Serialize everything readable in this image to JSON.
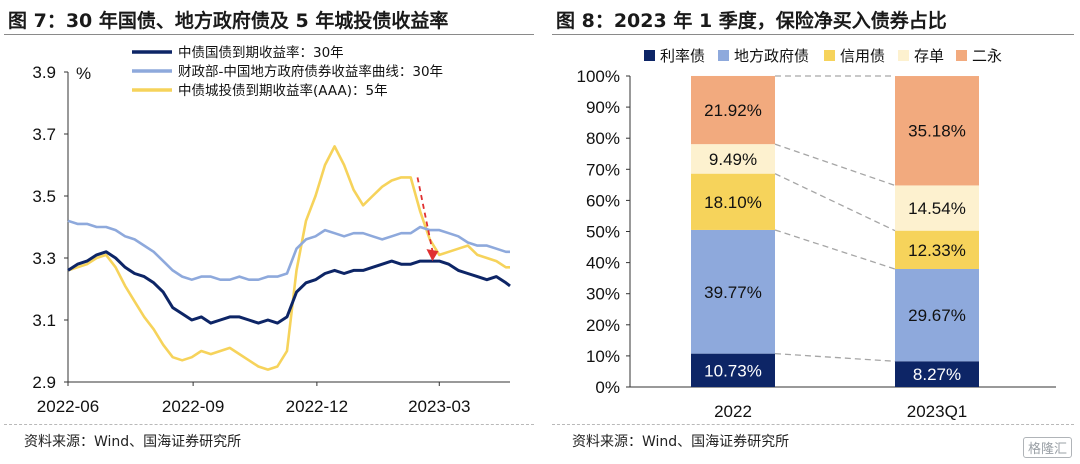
{
  "left": {
    "title": "图 7：30 年国债、地方政府债及 5 年城投债收益率",
    "source": "资料来源：Wind、国海证券研究所",
    "unit": "%"
  },
  "right": {
    "title": "图 8：2023 年 1 季度，保险净买入债券占比",
    "source": "资料来源：Wind、国海证券研究所"
  },
  "watermark": "格隆汇",
  "chart_data": [
    {
      "type": "line",
      "unit": "%",
      "ylim": [
        2.9,
        3.9
      ],
      "yticks": [
        "3.9",
        "3.7",
        "3.5",
        "3.3",
        "3.1",
        "2.9"
      ],
      "ytick_values": [
        3.9,
        3.7,
        3.5,
        3.3,
        3.1,
        2.9
      ],
      "xticks": [
        "2022-06",
        "2022-09",
        "2022-12",
        "2023-03"
      ],
      "xtick_dates": [
        "2022-06-01",
        "2022-09-01",
        "2022-12-01",
        "2023-03-01"
      ],
      "xlim": [
        "2022-06-01",
        "2023-04-22"
      ],
      "legend_position": "top",
      "series": [
        {
          "name": "中债国债到期收益率：30年",
          "color": "#0d2566",
          "points": [
            [
              "2022-06-01",
              3.26
            ],
            [
              "2022-06-08",
              3.28
            ],
            [
              "2022-06-15",
              3.29
            ],
            [
              "2022-06-22",
              3.31
            ],
            [
              "2022-06-29",
              3.32
            ],
            [
              "2022-07-06",
              3.3
            ],
            [
              "2022-07-13",
              3.27
            ],
            [
              "2022-07-20",
              3.25
            ],
            [
              "2022-07-27",
              3.24
            ],
            [
              "2022-08-03",
              3.22
            ],
            [
              "2022-08-10",
              3.19
            ],
            [
              "2022-08-17",
              3.14
            ],
            [
              "2022-08-24",
              3.12
            ],
            [
              "2022-08-31",
              3.1
            ],
            [
              "2022-09-07",
              3.11
            ],
            [
              "2022-09-14",
              3.09
            ],
            [
              "2022-09-21",
              3.1
            ],
            [
              "2022-09-28",
              3.11
            ],
            [
              "2022-10-05",
              3.11
            ],
            [
              "2022-10-12",
              3.1
            ],
            [
              "2022-10-19",
              3.09
            ],
            [
              "2022-10-26",
              3.1
            ],
            [
              "2022-11-02",
              3.09
            ],
            [
              "2022-11-09",
              3.11
            ],
            [
              "2022-11-16",
              3.19
            ],
            [
              "2022-11-23",
              3.22
            ],
            [
              "2022-11-30",
              3.23
            ],
            [
              "2022-12-07",
              3.25
            ],
            [
              "2022-12-14",
              3.26
            ],
            [
              "2022-12-21",
              3.25
            ],
            [
              "2022-12-28",
              3.26
            ],
            [
              "2023-01-04",
              3.26
            ],
            [
              "2023-01-11",
              3.27
            ],
            [
              "2023-01-18",
              3.28
            ],
            [
              "2023-01-25",
              3.29
            ],
            [
              "2023-02-01",
              3.28
            ],
            [
              "2023-02-08",
              3.28
            ],
            [
              "2023-02-15",
              3.29
            ],
            [
              "2023-02-22",
              3.29
            ],
            [
              "2023-03-01",
              3.29
            ],
            [
              "2023-03-08",
              3.28
            ],
            [
              "2023-03-15",
              3.26
            ],
            [
              "2023-03-22",
              3.25
            ],
            [
              "2023-03-29",
              3.24
            ],
            [
              "2023-04-05",
              3.23
            ],
            [
              "2023-04-12",
              3.24
            ],
            [
              "2023-04-19",
              3.22
            ],
            [
              "2023-04-22",
              3.21
            ]
          ]
        },
        {
          "name": "财政部-中国地方政府债券收益率曲线：30年",
          "color": "#8ea9dc",
          "points": [
            [
              "2022-06-01",
              3.42
            ],
            [
              "2022-06-08",
              3.41
            ],
            [
              "2022-06-15",
              3.41
            ],
            [
              "2022-06-22",
              3.4
            ],
            [
              "2022-06-29",
              3.4
            ],
            [
              "2022-07-06",
              3.39
            ],
            [
              "2022-07-13",
              3.37
            ],
            [
              "2022-07-20",
              3.36
            ],
            [
              "2022-07-27",
              3.34
            ],
            [
              "2022-08-03",
              3.32
            ],
            [
              "2022-08-10",
              3.29
            ],
            [
              "2022-08-17",
              3.26
            ],
            [
              "2022-08-24",
              3.24
            ],
            [
              "2022-08-31",
              3.23
            ],
            [
              "2022-09-07",
              3.24
            ],
            [
              "2022-09-14",
              3.24
            ],
            [
              "2022-09-21",
              3.23
            ],
            [
              "2022-09-28",
              3.23
            ],
            [
              "2022-10-05",
              3.24
            ],
            [
              "2022-10-12",
              3.23
            ],
            [
              "2022-10-19",
              3.23
            ],
            [
              "2022-10-26",
              3.24
            ],
            [
              "2022-11-02",
              3.24
            ],
            [
              "2022-11-09",
              3.25
            ],
            [
              "2022-11-16",
              3.33
            ],
            [
              "2022-11-23",
              3.36
            ],
            [
              "2022-11-30",
              3.37
            ],
            [
              "2022-12-07",
              3.39
            ],
            [
              "2022-12-14",
              3.38
            ],
            [
              "2022-12-21",
              3.37
            ],
            [
              "2022-12-28",
              3.38
            ],
            [
              "2023-01-04",
              3.38
            ],
            [
              "2023-01-11",
              3.37
            ],
            [
              "2023-01-18",
              3.36
            ],
            [
              "2023-01-25",
              3.37
            ],
            [
              "2023-02-01",
              3.38
            ],
            [
              "2023-02-08",
              3.38
            ],
            [
              "2023-02-15",
              3.4
            ],
            [
              "2023-02-22",
              3.39
            ],
            [
              "2023-03-01",
              3.39
            ],
            [
              "2023-03-08",
              3.38
            ],
            [
              "2023-03-15",
              3.37
            ],
            [
              "2023-03-22",
              3.35
            ],
            [
              "2023-03-29",
              3.34
            ],
            [
              "2023-04-05",
              3.34
            ],
            [
              "2023-04-12",
              3.33
            ],
            [
              "2023-04-19",
              3.32
            ],
            [
              "2023-04-22",
              3.32
            ]
          ]
        },
        {
          "name": "中债城投债到期收益率(AAA)：5年",
          "color": "#f6d35b",
          "points": [
            [
              "2022-06-01",
              3.26
            ],
            [
              "2022-06-08",
              3.27
            ],
            [
              "2022-06-15",
              3.28
            ],
            [
              "2022-06-22",
              3.3
            ],
            [
              "2022-06-29",
              3.31
            ],
            [
              "2022-07-06",
              3.27
            ],
            [
              "2022-07-13",
              3.21
            ],
            [
              "2022-07-20",
              3.16
            ],
            [
              "2022-07-27",
              3.11
            ],
            [
              "2022-08-03",
              3.07
            ],
            [
              "2022-08-10",
              3.02
            ],
            [
              "2022-08-17",
              2.98
            ],
            [
              "2022-08-24",
              2.97
            ],
            [
              "2022-08-31",
              2.98
            ],
            [
              "2022-09-07",
              3.0
            ],
            [
              "2022-09-14",
              2.99
            ],
            [
              "2022-09-21",
              3.0
            ],
            [
              "2022-09-28",
              3.01
            ],
            [
              "2022-10-05",
              2.99
            ],
            [
              "2022-10-12",
              2.97
            ],
            [
              "2022-10-19",
              2.95
            ],
            [
              "2022-10-26",
              2.94
            ],
            [
              "2022-11-02",
              2.95
            ],
            [
              "2022-11-09",
              3.0
            ],
            [
              "2022-11-16",
              3.26
            ],
            [
              "2022-11-23",
              3.42
            ],
            [
              "2022-11-30",
              3.5
            ],
            [
              "2022-12-07",
              3.6
            ],
            [
              "2022-12-14",
              3.66
            ],
            [
              "2022-12-21",
              3.6
            ],
            [
              "2022-12-28",
              3.52
            ],
            [
              "2023-01-04",
              3.47
            ],
            [
              "2023-01-11",
              3.5
            ],
            [
              "2023-01-18",
              3.53
            ],
            [
              "2023-01-25",
              3.55
            ],
            [
              "2023-02-01",
              3.56
            ],
            [
              "2023-02-08",
              3.56
            ],
            [
              "2023-02-15",
              3.45
            ],
            [
              "2023-02-22",
              3.36
            ],
            [
              "2023-03-01",
              3.31
            ],
            [
              "2023-03-08",
              3.32
            ],
            [
              "2023-03-15",
              3.33
            ],
            [
              "2023-03-22",
              3.34
            ],
            [
              "2023-03-29",
              3.31
            ],
            [
              "2023-04-05",
              3.3
            ],
            [
              "2023-04-12",
              3.29
            ],
            [
              "2023-04-19",
              3.27
            ],
            [
              "2023-04-22",
              3.27
            ]
          ]
        }
      ],
      "annotation": {
        "type": "arrow",
        "color": "#e03030",
        "from": [
          "2023-02-13",
          3.56
        ],
        "to": [
          "2023-02-24",
          3.29
        ]
      }
    },
    {
      "type": "stacked_bar",
      "categories": [
        "2022",
        "2023Q1"
      ],
      "ylim": [
        0,
        100
      ],
      "yticks": [
        "0%",
        "10%",
        "20%",
        "30%",
        "40%",
        "50%",
        "60%",
        "70%",
        "80%",
        "90%",
        "100%"
      ],
      "ytick_values": [
        0,
        10,
        20,
        30,
        40,
        50,
        60,
        70,
        80,
        90,
        100
      ],
      "legend_position": "top",
      "connectors": "dashed",
      "series": [
        {
          "name": "利率债",
          "color": "#0d2566",
          "label_color": "#ffffff",
          "values": [
            10.73,
            8.27
          ],
          "labels": [
            "10.73%",
            "8.27%"
          ]
        },
        {
          "name": "地方政府债",
          "color": "#8ea9dc",
          "label_color": "#111111",
          "values": [
            39.77,
            29.67
          ],
          "labels": [
            "39.77%",
            "29.67%"
          ]
        },
        {
          "name": "信用债",
          "color": "#f6d35b",
          "label_color": "#111111",
          "values": [
            18.1,
            12.33
          ],
          "labels": [
            "18.10%",
            "12.33%"
          ]
        },
        {
          "name": "存单",
          "color": "#fdf1cf",
          "label_color": "#111111",
          "values": [
            9.49,
            14.54
          ],
          "labels": [
            "9.49%",
            "14.54%"
          ]
        },
        {
          "name": "二永",
          "color": "#f2aa7e",
          "label_color": "#111111",
          "values": [
            21.92,
            35.18
          ],
          "labels": [
            "21.92%",
            "35.18%"
          ]
        }
      ]
    }
  ]
}
